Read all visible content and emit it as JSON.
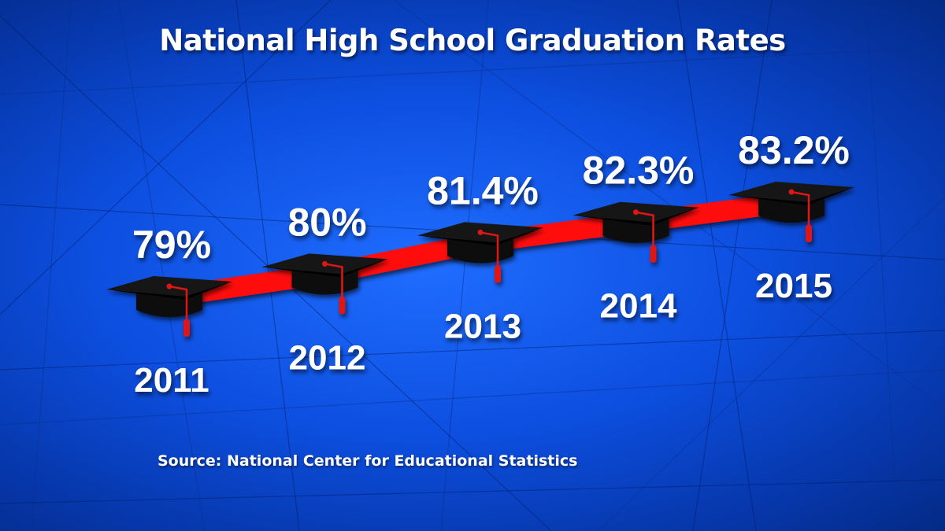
{
  "title": "National High School Graduation Rates",
  "source": "Source: National Center for Educational Statistics",
  "colors": {
    "background": "#0d4fe0",
    "ribbon": "#ff1010",
    "cap": "#141414",
    "tassel": "#e01818",
    "text": "#ffffff"
  },
  "icons": {
    "marker": "graduation-cap-icon"
  },
  "chart_data": {
    "type": "line",
    "title": "National High School Graduation Rates",
    "categories": [
      "2011",
      "2012",
      "2013",
      "2014",
      "2015"
    ],
    "values": [
      79,
      80,
      81.4,
      82.3,
      83.2
    ],
    "value_labels": [
      "79%",
      "80%",
      "81.4%",
      "82.3%",
      "83.2%"
    ],
    "unit": "%",
    "xlabel": "",
    "ylabel": "",
    "grid": false,
    "legend": "none"
  }
}
